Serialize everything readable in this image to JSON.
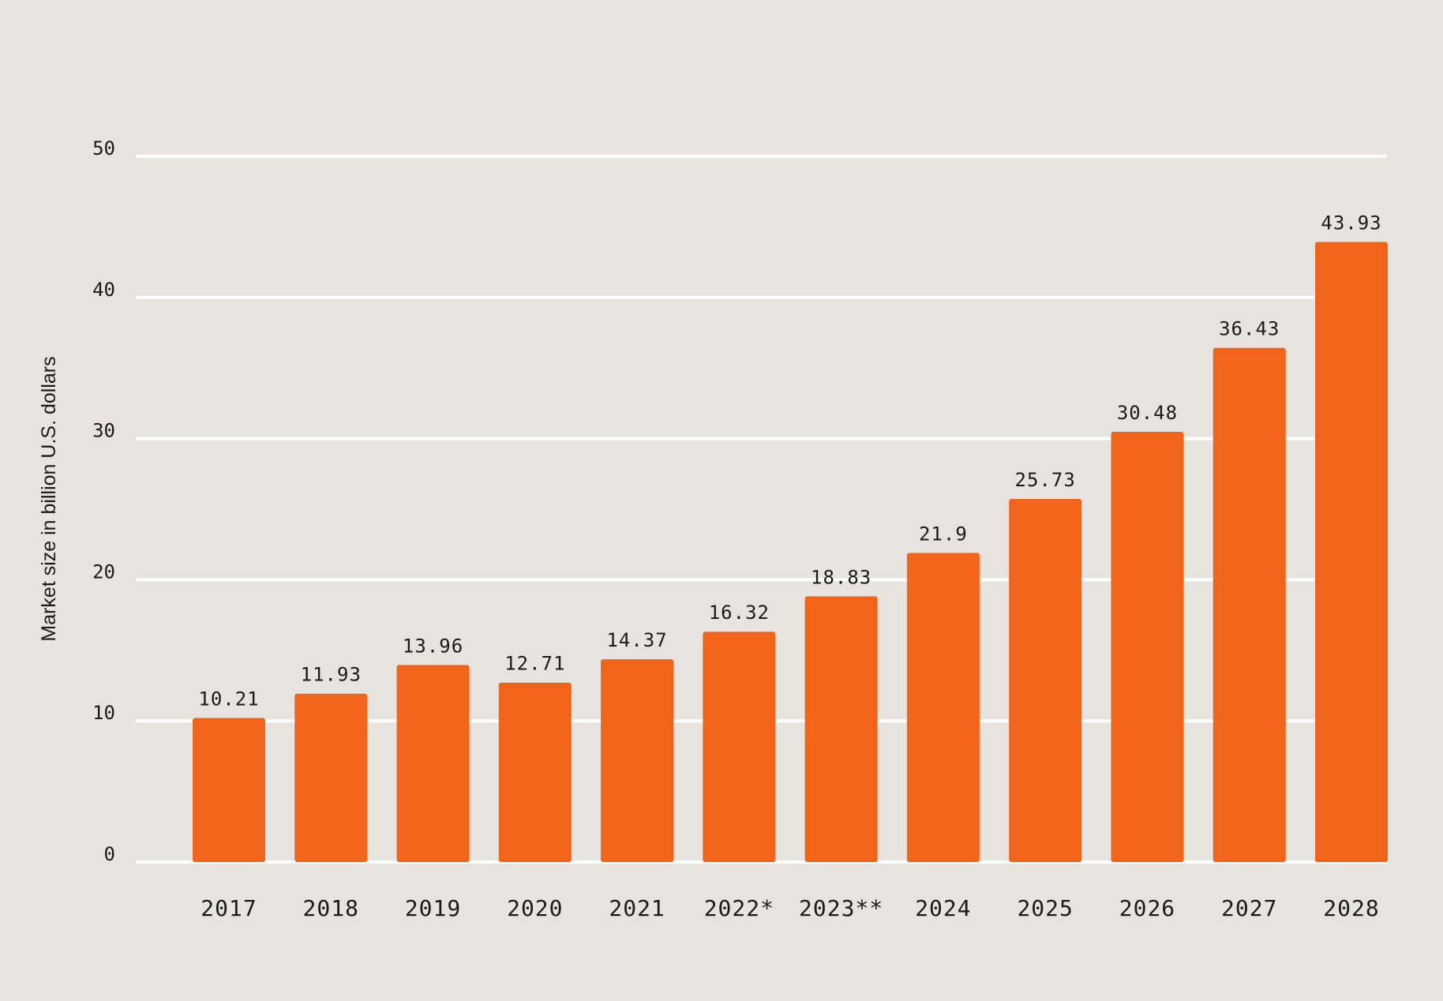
{
  "chart_data": {
    "type": "bar",
    "title": "",
    "xlabel": "",
    "ylabel": "Market size in billion U.S. dollars",
    "categories": [
      "2017",
      "2018",
      "2019",
      "2020",
      "2021",
      "2022*",
      "2023**",
      "2024",
      "2025",
      "2026",
      "2027",
      "2028"
    ],
    "values": [
      10.21,
      11.93,
      13.96,
      12.71,
      14.37,
      16.32,
      18.83,
      21.9,
      25.73,
      30.48,
      36.43,
      43.93
    ],
    "value_labels": [
      "10.21",
      "11.93",
      "13.96",
      "12.71",
      "14.37",
      "16.32",
      "18.83",
      "21.9",
      "25.73",
      "30.48",
      "36.43",
      "43.93"
    ],
    "ylim": [
      0,
      50
    ],
    "yticks": [
      "0",
      "10",
      "20",
      "30",
      "40",
      "50"
    ],
    "grid": true,
    "legend": "none",
    "colors": {
      "bar": "#f26419",
      "grid": "#ffffff",
      "background": "#e7e4df",
      "text": "#1a1a1a"
    }
  }
}
